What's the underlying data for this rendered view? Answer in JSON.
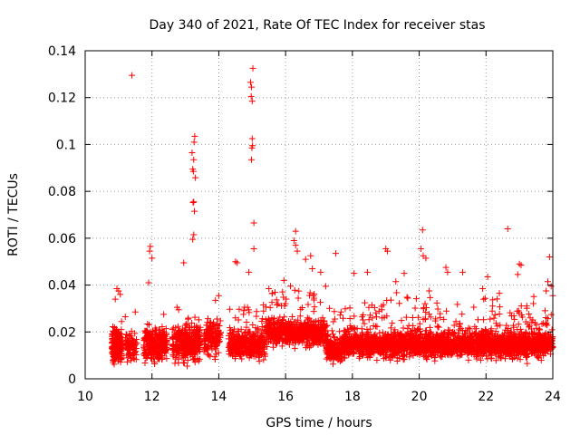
{
  "chart_data": {
    "type": "scatter",
    "title": "Day 340 of 2021, Rate Of TEC Index for receiver stas",
    "xlabel": "GPS time / hours",
    "ylabel": "ROTI / TECUs",
    "xlim": [
      10,
      24
    ],
    "ylim": [
      0,
      0.14
    ],
    "x_ticks": [
      10,
      12,
      14,
      16,
      18,
      20,
      22,
      24
    ],
    "x_tick_labels": [
      "10",
      "12",
      "14",
      "16",
      "18",
      "20",
      "22",
      "24"
    ],
    "y_ticks": [
      0,
      0.02,
      0.04,
      0.06,
      0.08,
      0.1,
      0.12,
      0.14
    ],
    "y_tick_labels": [
      "0",
      "0.02",
      "0.04",
      "0.06",
      "0.08",
      "0.1",
      "0.12",
      "0.14"
    ],
    "grid": true,
    "marker": "+",
    "color": "#ff0000",
    "series": [
      {
        "name": "ROTI",
        "points": [
          [
            11.4,
            0.1295
          ],
          [
            15.02,
            0.1325
          ],
          [
            14.95,
            0.1265
          ],
          [
            14.98,
            0.1245
          ],
          [
            14.97,
            0.1205
          ],
          [
            15.0,
            0.1185
          ],
          [
            13.28,
            0.1035
          ],
          [
            13.26,
            0.101
          ],
          [
            15.0,
            0.1025
          ],
          [
            15.01,
            0.0995
          ],
          [
            14.99,
            0.0985
          ],
          [
            13.2,
            0.0965
          ],
          [
            13.25,
            0.0935
          ],
          [
            13.22,
            0.0895
          ],
          [
            13.24,
            0.0885
          ],
          [
            13.3,
            0.0858
          ],
          [
            14.98,
            0.0935
          ],
          [
            13.25,
            0.0755
          ],
          [
            13.23,
            0.0752
          ],
          [
            13.27,
            0.0715
          ],
          [
            15.05,
            0.0665
          ],
          [
            22.65,
            0.064
          ],
          [
            16.3,
            0.063
          ],
          [
            20.1,
            0.0635
          ],
          [
            13.25,
            0.0615
          ],
          [
            13.22,
            0.0595
          ],
          [
            15.05,
            0.0555
          ],
          [
            11.95,
            0.0565
          ],
          [
            11.93,
            0.0545
          ],
          [
            12.0,
            0.0515
          ],
          [
            16.25,
            0.059
          ],
          [
            16.3,
            0.057
          ],
          [
            16.35,
            0.0545
          ],
          [
            16.75,
            0.0525
          ],
          [
            17.5,
            0.0535
          ],
          [
            19.0,
            0.0555
          ],
          [
            19.05,
            0.0545
          ],
          [
            20.05,
            0.0555
          ],
          [
            20.12,
            0.0525
          ],
          [
            20.2,
            0.0515
          ],
          [
            14.5,
            0.05
          ],
          [
            14.55,
            0.0495
          ],
          [
            12.95,
            0.0495
          ],
          [
            23.9,
            0.052
          ],
          [
            23.0,
            0.049
          ],
          [
            23.05,
            0.0485
          ],
          [
            16.6,
            0.051
          ],
          [
            16.8,
            0.047
          ],
          [
            17.05,
            0.0455
          ],
          [
            18.45,
            0.0455
          ],
          [
            18.05,
            0.045
          ],
          [
            19.55,
            0.045
          ],
          [
            21.3,
            0.0455
          ],
          [
            22.95,
            0.0445
          ],
          [
            22.05,
            0.0435
          ],
          [
            14.9,
            0.0455
          ],
          [
            20.8,
            0.0475
          ],
          [
            20.85,
            0.0455
          ],
          [
            15.95,
            0.042
          ],
          [
            11.9,
            0.041
          ],
          [
            10.95,
            0.0385
          ],
          [
            11.0,
            0.0375
          ],
          [
            11.05,
            0.036
          ],
          [
            10.9,
            0.034
          ],
          [
            23.85,
            0.0415
          ],
          [
            23.95,
            0.0395
          ],
          [
            24.0,
            0.0355
          ],
          [
            23.8,
            0.0375
          ],
          [
            15.5,
            0.0385
          ],
          [
            15.6,
            0.0365
          ],
          [
            17.2,
            0.0395
          ],
          [
            19.3,
            0.0415
          ],
          [
            21.9,
            0.0385
          ],
          [
            22.4,
            0.0365
          ],
          [
            12.75,
            0.0305
          ],
          [
            12.8,
            0.0295
          ],
          [
            13.9,
            0.0335
          ],
          [
            14.0,
            0.0355
          ],
          [
            11.5,
            0.0285
          ],
          [
            12.35,
            0.0275
          ],
          [
            11.2,
            0.0265
          ],
          [
            20.3,
            0.0375
          ]
        ]
      }
    ]
  }
}
